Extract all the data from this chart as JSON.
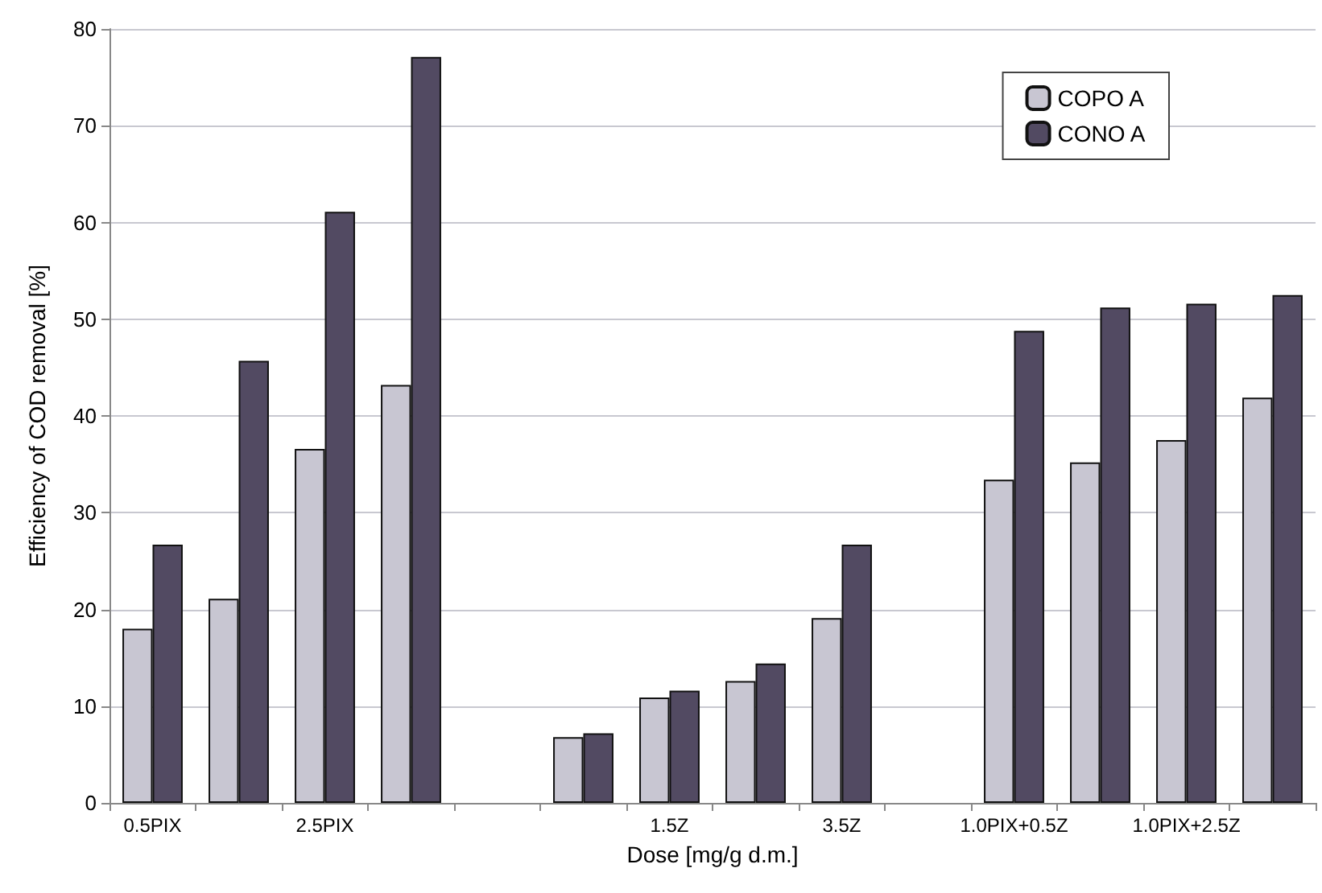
{
  "chart_data": {
    "type": "bar",
    "xlabel": "Dose [mg/g d.m.]",
    "ylabel": "Efficiency of COD removal [%]",
    "categories": [
      "0.5PIX",
      null,
      "2.5PIX",
      null,
      null,
      null,
      "1.5Z",
      null,
      "3.5Z",
      null,
      "1.0PIX+0.5Z",
      null,
      "1.0PIX+2.5Z",
      null
    ],
    "series": [
      {
        "name": "COPO A",
        "color": "#c8c6d2",
        "values": [
          18.0,
          21.1,
          36.6,
          43.2,
          null,
          6.8,
          10.9,
          12.6,
          19.1,
          null,
          33.4,
          35.2,
          37.5,
          41.9
        ]
      },
      {
        "name": "CONO A",
        "color": "#524a62",
        "values": [
          26.7,
          45.7,
          61.1,
          77.1,
          null,
          7.2,
          11.6,
          14.4,
          26.7,
          null,
          48.8,
          51.2,
          51.6,
          52.5
        ]
      }
    ],
    "ylim": [
      0,
      80
    ],
    "yticks": [
      0,
      10,
      20,
      30,
      40,
      50,
      60,
      70,
      80
    ],
    "grid": "y",
    "legend": "top right"
  }
}
